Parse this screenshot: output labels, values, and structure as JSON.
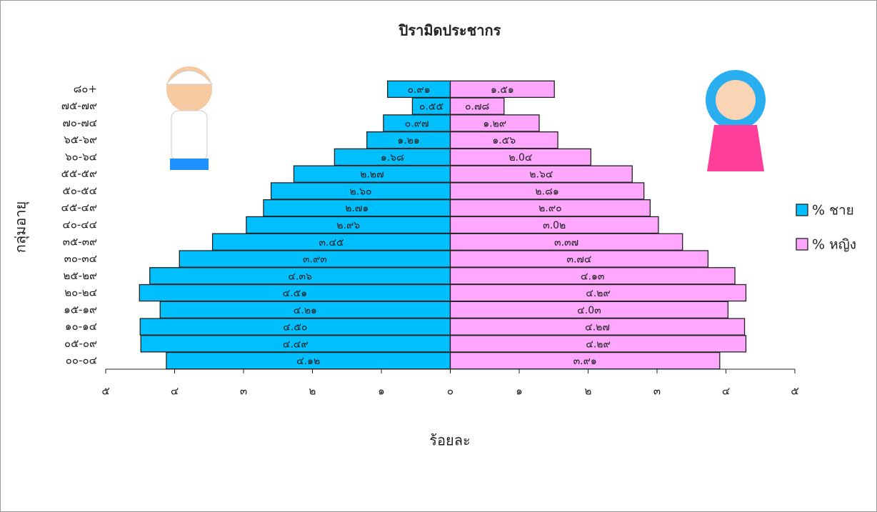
{
  "chart_data": {
    "type": "pyramid",
    "title": "ปิรามิดประชากร",
    "y_label": "กลุ่มอายุ",
    "x_label": "ร้อยละ",
    "categories": [
      "๐๐-๐๔",
      "๐๕-๐๙",
      "๑๐-๑๔",
      "๑๕-๑๙",
      "๒๐-๒๔",
      "๒๕-๒๙",
      "๓๐-๓๔",
      "๓๕-๓๙",
      "๔๐-๔๔",
      "๔๕-๔๙",
      "๕๐-๕๔",
      "๕๕-๕๙",
      "๖๐-๖๔",
      "๖๕-๖๙",
      "๗๐-๗๔",
      "๗๕-๗๙",
      "๘๐+"
    ],
    "series": [
      {
        "name": "% ชาย",
        "color": "#00bfff",
        "values": [
          -4.12,
          -4.49,
          -4.5,
          -4.21,
          -4.51,
          -4.36,
          -3.93,
          -3.45,
          -2.96,
          -2.71,
          -2.6,
          -2.27,
          -1.68,
          -1.21,
          -0.97,
          -0.55,
          -0.91
        ],
        "value_labels": [
          "๔.๑๒",
          "๔.๔๙",
          "๔.๕๐",
          "๔.๒๑",
          "๔.๕๑",
          "๔.๓๖",
          "๓.๙๓",
          "๓.๔๕",
          "๒.๙๖",
          "๒.๗๑",
          "๒.๖๐",
          "๒.๒๗",
          "๑.๖๘",
          "๑.๒๑",
          "๐.๙๗",
          "๐.๕๕",
          "๐.๙๑"
        ]
      },
      {
        "name": "% หญิง",
        "color": "#ffa6ff",
        "values": [
          3.91,
          4.29,
          4.27,
          4.03,
          4.29,
          4.13,
          3.74,
          3.37,
          3.02,
          2.9,
          2.81,
          2.64,
          2.04,
          1.56,
          1.29,
          0.78,
          1.51
        ],
        "value_labels": [
          "๓.๙๑",
          "๔.๒๙",
          "๔.๒๗",
          "๔.0๓",
          "๔.๒๙",
          "๔.๑๓",
          "๓.๗๔",
          "๓.๓๗",
          "๓.0๒",
          "๒.๙๐",
          "๒.๘๑",
          "๒.๖๔",
          "๒.0๔",
          "๑.๕๖",
          "๑.๒๙",
          "๐.๗๘",
          "๑.๕๑"
        ]
      }
    ],
    "xlim": [
      -5,
      5
    ],
    "xticks": [
      {
        "value": -5,
        "label": "๕"
      },
      {
        "value": -4,
        "label": "๔"
      },
      {
        "value": -3,
        "label": "๓"
      },
      {
        "value": -2,
        "label": "๒"
      },
      {
        "value": -1,
        "label": "๑"
      },
      {
        "value": 0,
        "label": "๐"
      },
      {
        "value": 1,
        "label": "๑"
      },
      {
        "value": 2,
        "label": "๒"
      },
      {
        "value": 3,
        "label": "๓"
      },
      {
        "value": 4,
        "label": "๔"
      },
      {
        "value": 5,
        "label": "๕"
      }
    ],
    "legend": "right"
  }
}
